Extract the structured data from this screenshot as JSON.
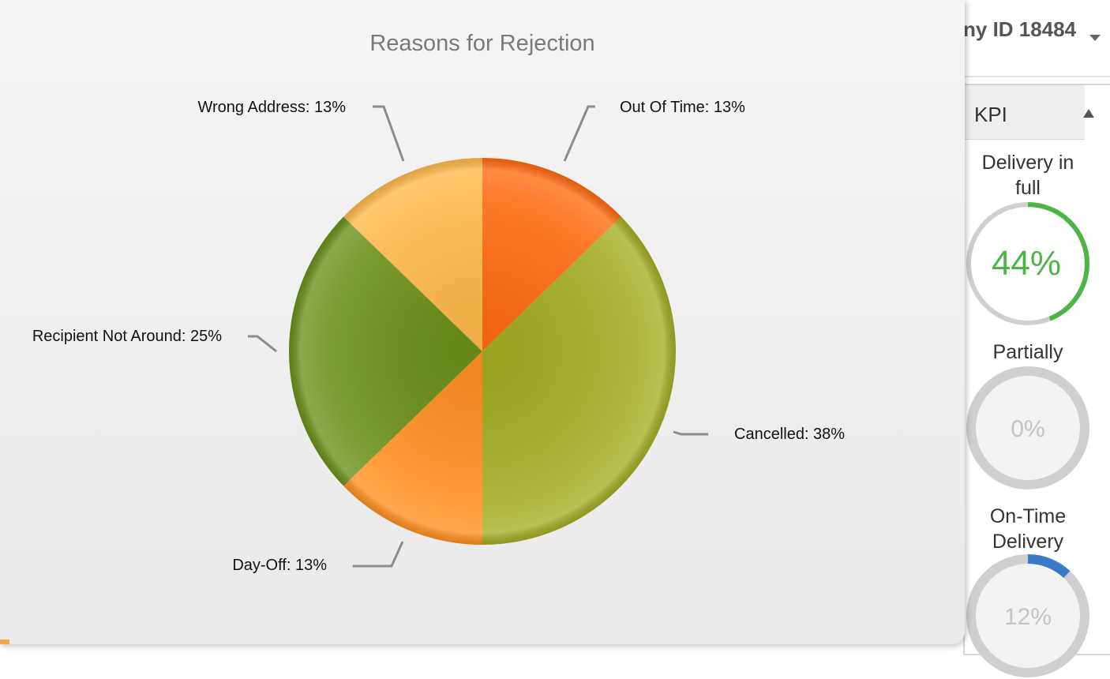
{
  "header": {
    "company_label": "ny ID 18484",
    "dropdown_icon": "caret-down-icon"
  },
  "kpi_panel": {
    "title": "KPI",
    "collapse_icon": "triangle-up-icon",
    "gauges": [
      {
        "label_line1": "Delivery in",
        "label_line2": "full",
        "value_text": "44%",
        "value": 44,
        "color": "#4cb543",
        "text_color": "#4cb543"
      },
      {
        "label_line1": "Partially",
        "label_line2": "",
        "value_text": "0%",
        "value": 0,
        "color": "#3a7bc8",
        "text_color": "#c4c4c4"
      },
      {
        "label_line1": "On-Time",
        "label_line2": "Delivery",
        "value_text": "12%",
        "value": 12,
        "color": "#3a7bc8",
        "text_color": "#c4c4c4"
      }
    ]
  },
  "chart_data": {
    "type": "pie",
    "title": "Reasons for Rejection",
    "slices": [
      {
        "name": "Out Of Time",
        "value": 13,
        "label": "Out Of Time: 13%",
        "color": "#ff6a10"
      },
      {
        "name": "Cancelled",
        "value": 38,
        "label": "Cancelled: 38%",
        "color": "#a4ad25"
      },
      {
        "name": "Day-Off",
        "value": 13,
        "label": "Day-Off: 13%",
        "color": "#ff8f20"
      },
      {
        "name": "Recipient Not Around",
        "value": 25,
        "label": "Recipient Not Around: 25%",
        "color": "#6b8f1a"
      },
      {
        "name": "Wrong Address",
        "value": 13,
        "label": "Wrong Address: 13%",
        "color": "#ffb84a"
      }
    ],
    "legend": "none"
  }
}
